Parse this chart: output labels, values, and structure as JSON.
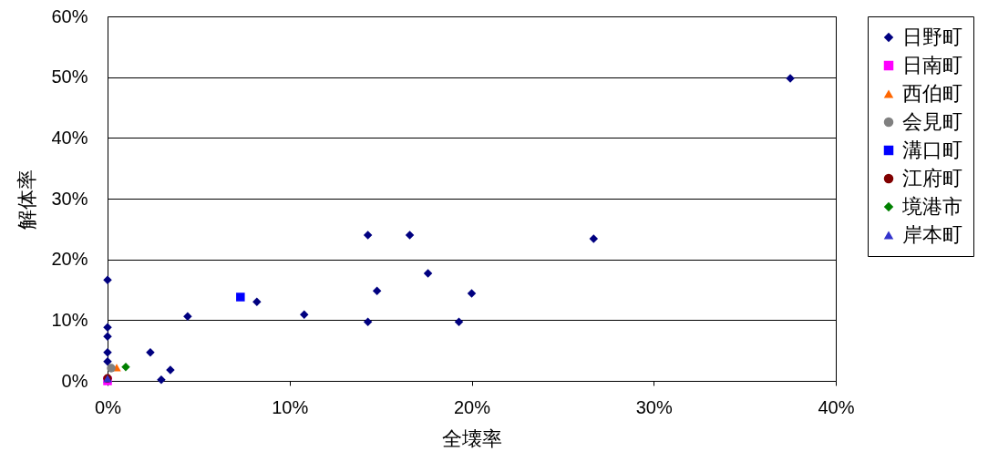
{
  "chart_data": {
    "type": "scatter",
    "xlabel": "全壊率",
    "ylabel": "解体率",
    "xlim": [
      0,
      40
    ],
    "ylim": [
      0,
      60
    ],
    "xticks": [
      {
        "value": 0,
        "label": "0%"
      },
      {
        "value": 10,
        "label": "10%"
      },
      {
        "value": 20,
        "label": "20%"
      },
      {
        "value": 30,
        "label": "30%"
      },
      {
        "value": 40,
        "label": "40%"
      }
    ],
    "yticks": [
      {
        "value": 0,
        "label": "0%"
      },
      {
        "value": 10,
        "label": "10%"
      },
      {
        "value": 20,
        "label": "20%"
      },
      {
        "value": 30,
        "label": "30%"
      },
      {
        "value": 40,
        "label": "40%"
      },
      {
        "value": 50,
        "label": "50%"
      },
      {
        "value": 60,
        "label": "60%"
      }
    ],
    "grid": "y",
    "legend": "right",
    "series": [
      {
        "name": "日野町",
        "color": "#000080",
        "marker": "diamond",
        "x": [
          0,
          0,
          0,
          0,
          0,
          2.35,
          2.95,
          3.45,
          4.4,
          8.2,
          10.8,
          14.3,
          14.3,
          14.8,
          16.6,
          17.6,
          19.3,
          20.0,
          26.7,
          37.5
        ],
        "values": [
          16.6,
          8.8,
          7.3,
          4.7,
          3.2,
          4.7,
          0.2,
          1.8,
          10.6,
          13.0,
          10.9,
          24.0,
          9.7,
          14.8,
          24.0,
          17.7,
          9.7,
          14.4,
          23.4,
          49.8
        ]
      },
      {
        "name": "日南町",
        "color": "#ff00ff",
        "marker": "square",
        "x": [
          0
        ],
        "values": [
          0
        ]
      },
      {
        "name": "西伯町",
        "color": "#ff6600",
        "marker": "triangle",
        "x": [
          0.5
        ],
        "values": [
          2.2
        ]
      },
      {
        "name": "会見町",
        "color": "#808080",
        "marker": "circle",
        "x": [
          0.2
        ],
        "values": [
          2.1
        ]
      },
      {
        "name": "溝口町",
        "color": "#0000ff",
        "marker": "square",
        "x": [
          7.3
        ],
        "values": [
          13.8
        ]
      },
      {
        "name": "江府町",
        "color": "#800000",
        "marker": "circle",
        "x": [
          0
        ],
        "values": [
          0.4
        ]
      },
      {
        "name": "境港市",
        "color": "#008000",
        "marker": "diamond",
        "x": [
          1.0
        ],
        "values": [
          2.3
        ]
      },
      {
        "name": "岸本町",
        "color": "#3333cc",
        "marker": "triangle",
        "x": [
          0
        ],
        "values": [
          0.4
        ]
      }
    ]
  }
}
